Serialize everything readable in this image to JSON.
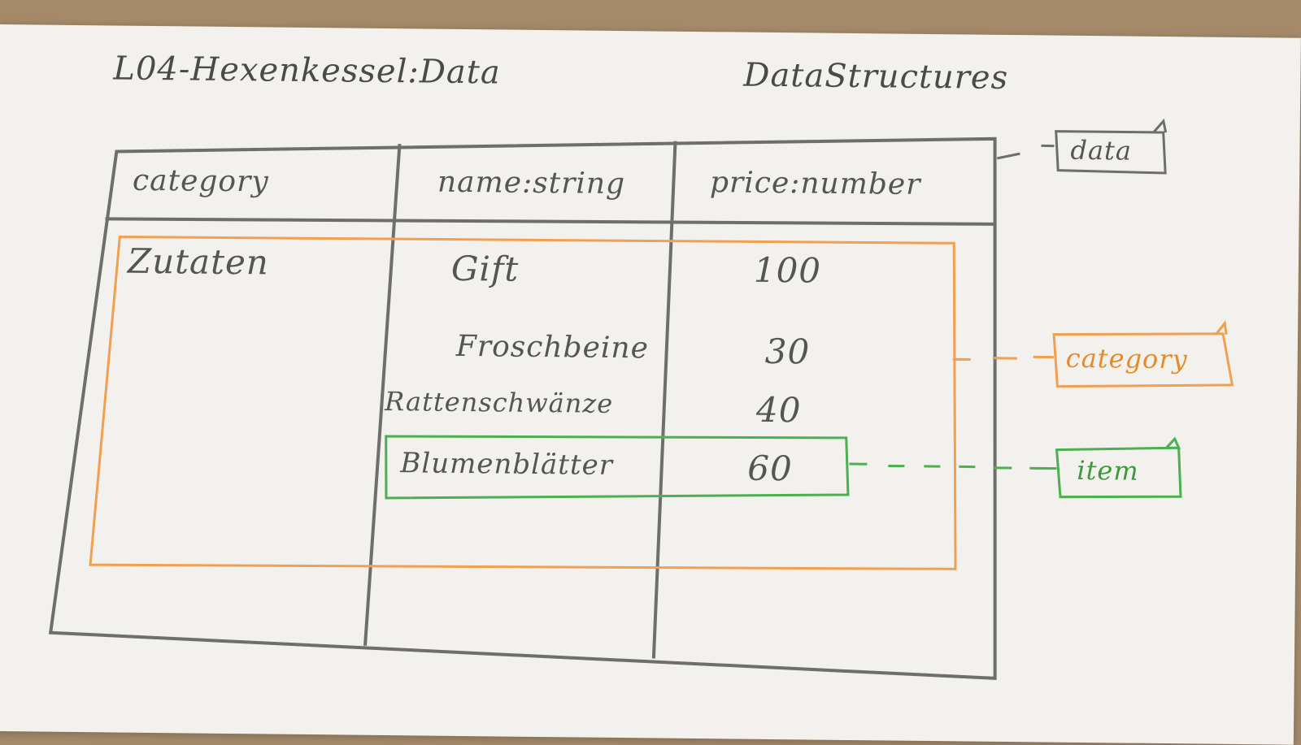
{
  "titles": {
    "left": "L04-Hexenkessel:Data",
    "right": "DataStructures"
  },
  "table": {
    "headers": [
      "category",
      "name:string",
      "price:number"
    ],
    "category_value": "Zutaten",
    "rows": [
      {
        "name": "Gift",
        "price": "100"
      },
      {
        "name": "Froschbeine",
        "price": "30"
      },
      {
        "name": "Rattenschwänze",
        "price": "40"
      },
      {
        "name": "Blumenblätter",
        "price": "60"
      }
    ]
  },
  "tags": {
    "data": "data",
    "category": "category",
    "item": "item"
  },
  "colors": {
    "pencil": "#707070",
    "category": "#f0a050",
    "item": "#4caf50",
    "paper": "#f2f1ed"
  }
}
